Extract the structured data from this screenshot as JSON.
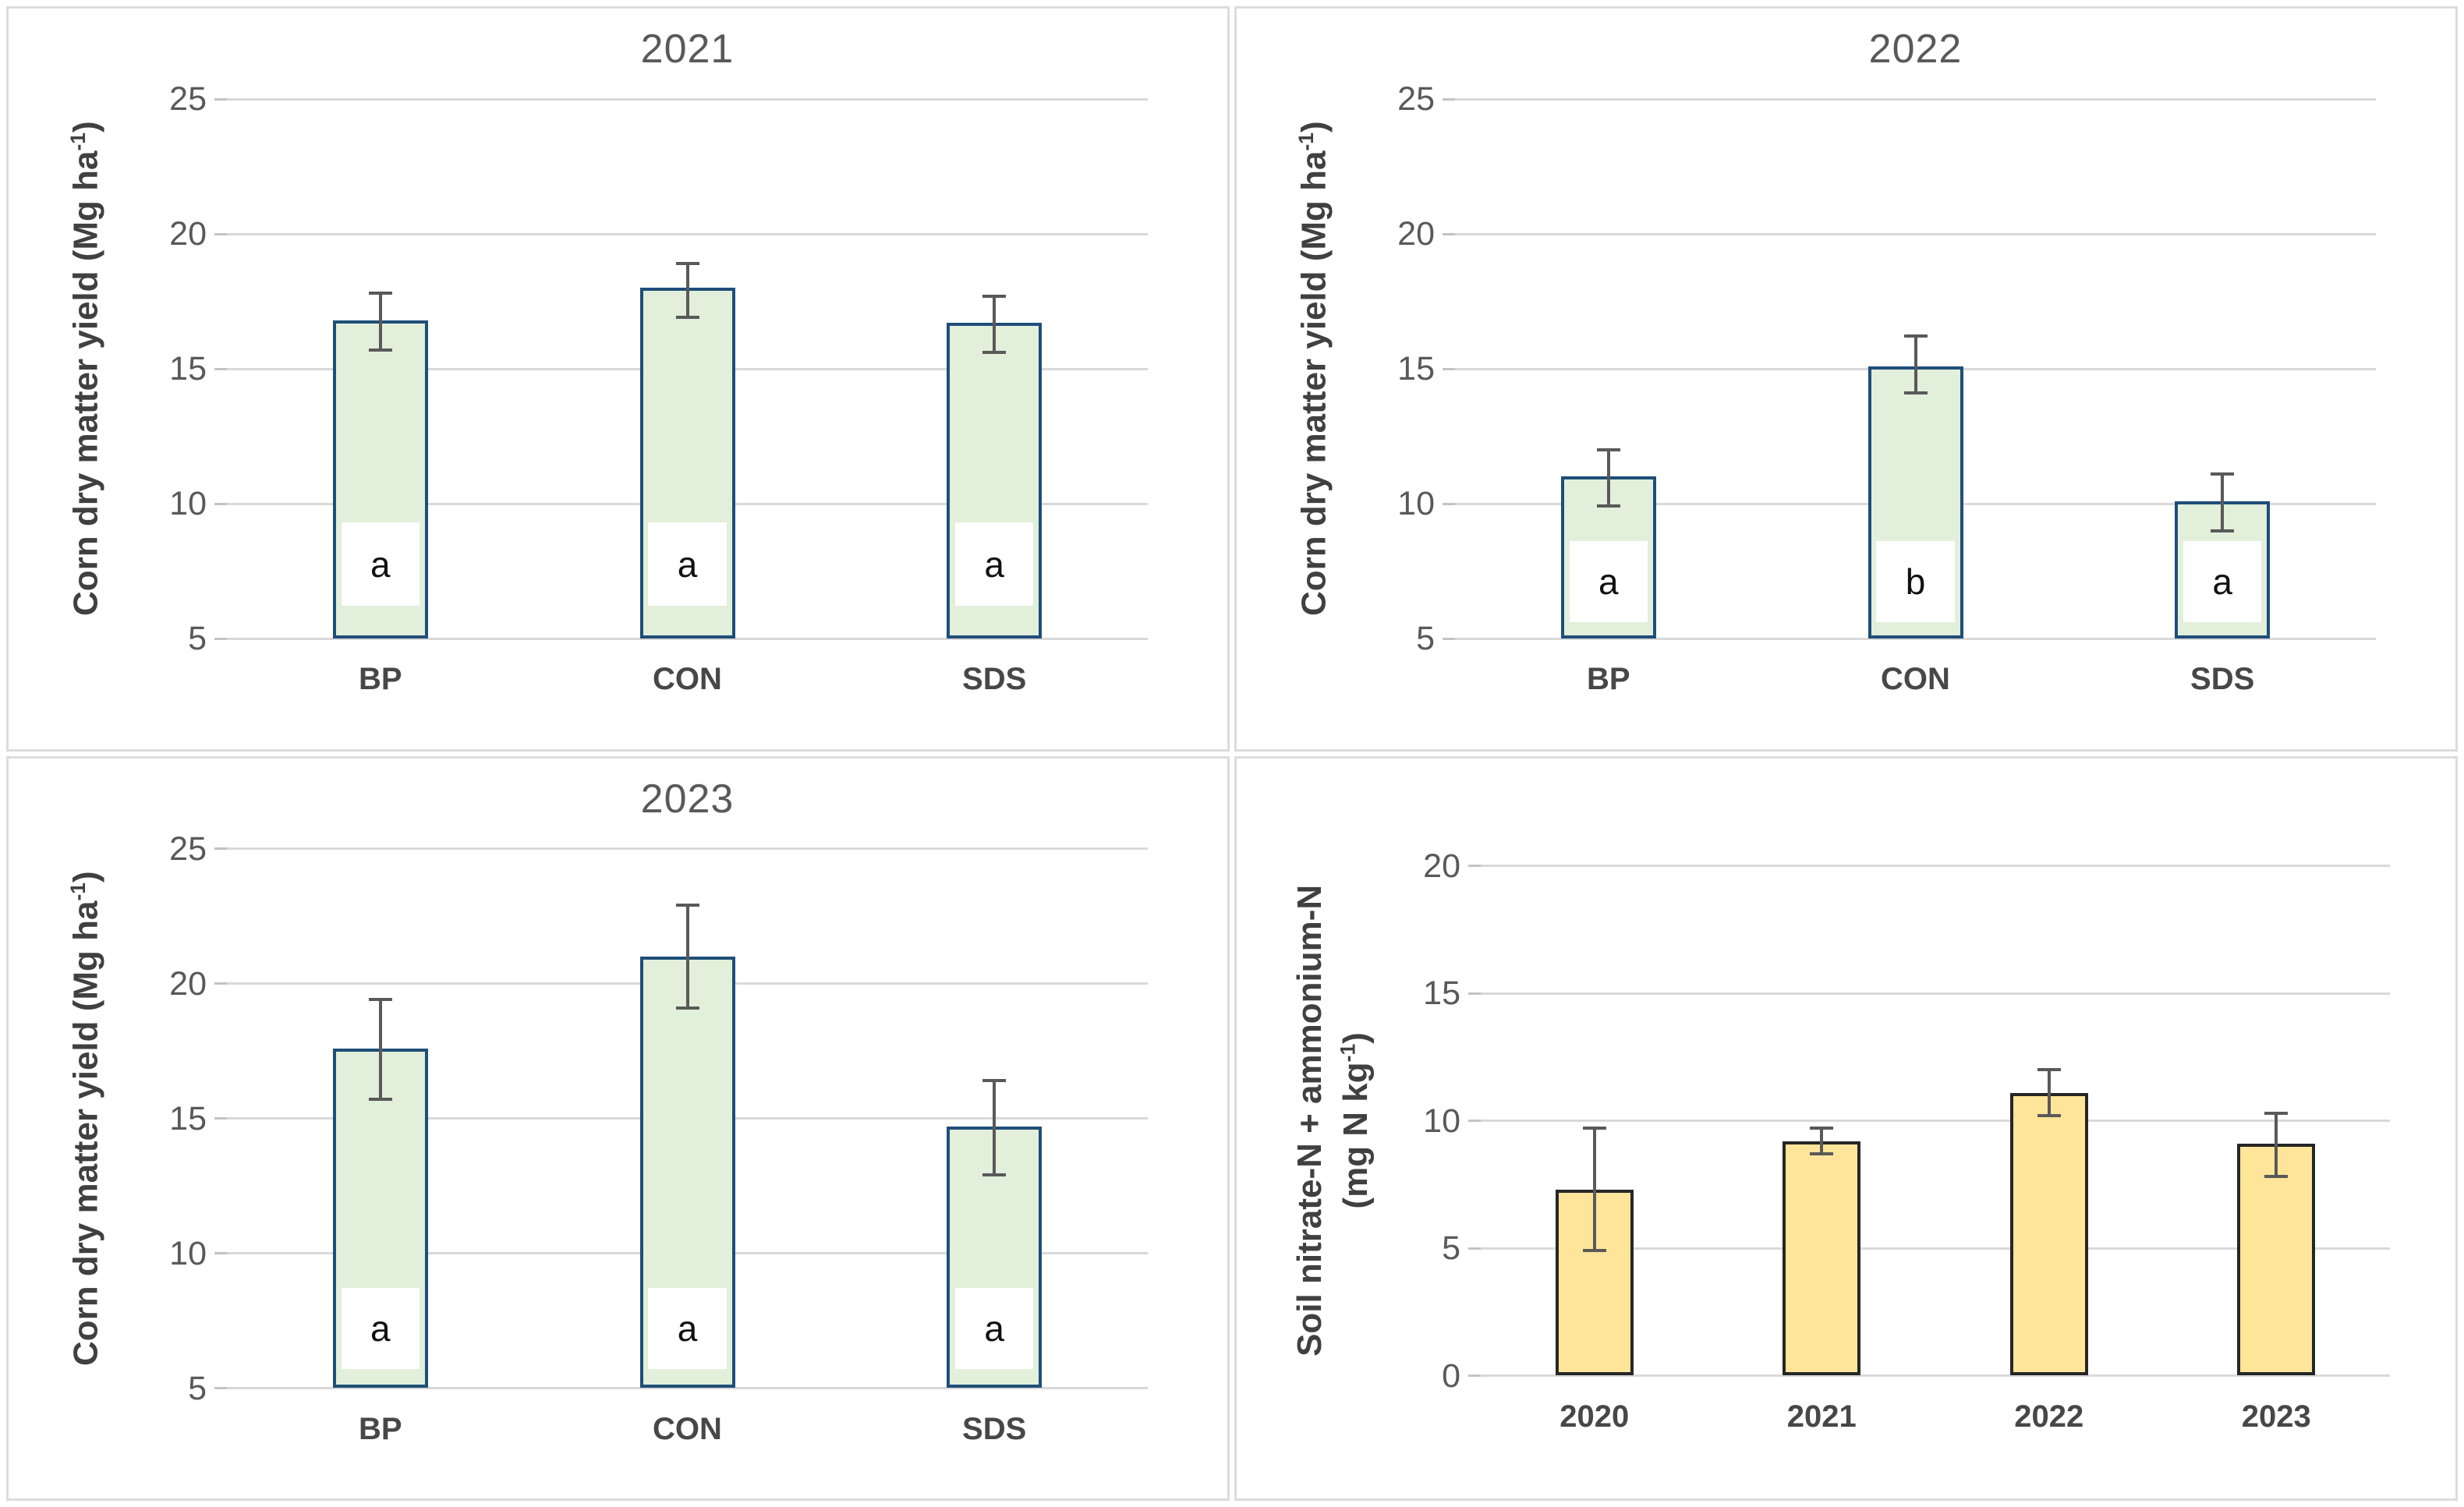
{
  "figure": {
    "background": "#ffffff",
    "panel_border_color": "#dcdcdc"
  },
  "colors": {
    "gridline": "#d9d9d9",
    "tick_stub": "#c3c3c3",
    "title_text": "#595959",
    "tick_text": "#595959",
    "x_tick_text": "#474747",
    "axis_label_text": "#404040",
    "letter_text": "#111111",
    "error_bar": "#595959",
    "corn_bar_fill": "#e2efda",
    "corn_bar_border": "#1f4e79",
    "soil_bar_fill": "#ffe599",
    "soil_bar_border": "#262626"
  },
  "chart_data": [
    {
      "type": "bar",
      "kind": "corn",
      "title": "2021",
      "ylabel_lines": [
        [
          {
            "text": "Corn dry matter yield (Mg ha"
          },
          {
            "text": "-1",
            "superscript": true
          },
          {
            "text": ")"
          }
        ]
      ],
      "ylim": [
        5,
        25
      ],
      "yticks": [
        25,
        20,
        15,
        10,
        5
      ],
      "categories": [
        "BP",
        "CON",
        "SDS"
      ],
      "bars": [
        {
          "category": "BP",
          "value": 16.8,
          "err_low": 15.7,
          "err_high": 17.8,
          "letter": "a"
        },
        {
          "category": "CON",
          "value": 18.0,
          "err_low": 16.9,
          "err_high": 18.9,
          "letter": "a"
        },
        {
          "category": "SDS",
          "value": 16.7,
          "err_low": 15.6,
          "err_high": 17.7,
          "letter": "a"
        }
      ],
      "letter_box_span": [
        6.2,
        9.3
      ],
      "grid": true,
      "legend": null
    },
    {
      "type": "bar",
      "kind": "corn",
      "title": "2022",
      "ylabel_lines": [
        [
          {
            "text": "Corn dry matter yield (Mg ha"
          },
          {
            "text": "-1",
            "superscript": true
          },
          {
            "text": ")"
          }
        ]
      ],
      "ylim": [
        5,
        25
      ],
      "yticks": [
        25,
        20,
        15,
        10,
        5
      ],
      "categories": [
        "BP",
        "CON",
        "SDS"
      ],
      "bars": [
        {
          "category": "BP",
          "value": 11.0,
          "err_low": 9.9,
          "err_high": 12.0,
          "letter": "a"
        },
        {
          "category": "CON",
          "value": 15.1,
          "err_low": 14.1,
          "err_high": 16.2,
          "letter": "b"
        },
        {
          "category": "SDS",
          "value": 10.1,
          "err_low": 9.0,
          "err_high": 11.1,
          "letter": "a"
        }
      ],
      "letter_box_span": [
        5.6,
        8.6
      ],
      "grid": true,
      "legend": null
    },
    {
      "type": "bar",
      "kind": "corn",
      "title": "2023",
      "ylabel_lines": [
        [
          {
            "text": "Corn dry matter yield (Mg ha"
          },
          {
            "text": "-1",
            "superscript": true
          },
          {
            "text": ")"
          }
        ]
      ],
      "ylim": [
        5,
        25
      ],
      "yticks": [
        25,
        20,
        15,
        10,
        5
      ],
      "categories": [
        "BP",
        "CON",
        "SDS"
      ],
      "bars": [
        {
          "category": "BP",
          "value": 17.6,
          "err_low": 15.7,
          "err_high": 19.4,
          "letter": "a"
        },
        {
          "category": "CON",
          "value": 21.0,
          "err_low": 19.1,
          "err_high": 22.9,
          "letter": "a"
        },
        {
          "category": "SDS",
          "value": 14.7,
          "err_low": 12.9,
          "err_high": 16.4,
          "letter": "a"
        }
      ],
      "letter_box_span": [
        5.7,
        8.7
      ],
      "grid": true,
      "legend": null
    },
    {
      "type": "bar",
      "kind": "soil",
      "title": "",
      "ylabel_lines": [
        [
          {
            "text": "Soil nitrate-N + ammonium-N"
          }
        ],
        [
          {
            "text": "(mg N kg"
          },
          {
            "text": "-1",
            "superscript": true
          },
          {
            "text": ")"
          }
        ]
      ],
      "ylim": [
        0,
        20
      ],
      "yticks": [
        20,
        15,
        10,
        5,
        0
      ],
      "categories": [
        "2020",
        "2021",
        "2022",
        "2023"
      ],
      "bars": [
        {
          "category": "2020",
          "value": 7.3,
          "err_low": 4.9,
          "err_high": 9.7,
          "letter": null
        },
        {
          "category": "2021",
          "value": 9.2,
          "err_low": 8.7,
          "err_high": 9.7,
          "letter": null
        },
        {
          "category": "2022",
          "value": 11.1,
          "err_low": 10.2,
          "err_high": 12.0,
          "letter": null
        },
        {
          "category": "2023",
          "value": 9.1,
          "err_low": 7.8,
          "err_high": 10.3,
          "letter": null
        }
      ],
      "letter_box_span": null,
      "grid": true,
      "legend": null
    }
  ]
}
